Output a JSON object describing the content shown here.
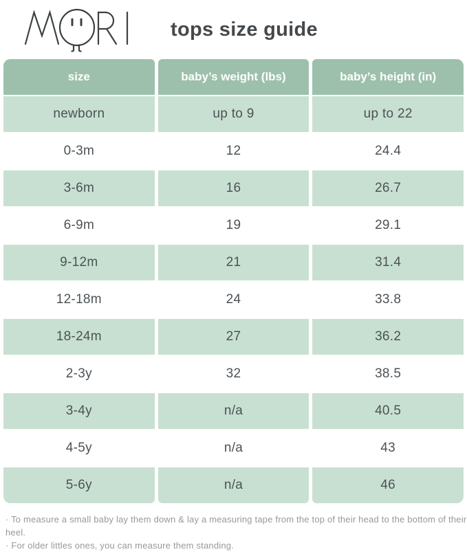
{
  "brand": {
    "name": "MORI"
  },
  "header": {
    "title": "tops size guide"
  },
  "table": {
    "columns": [
      "size",
      "baby’s weight (lbs)",
      "baby’s height (in)"
    ],
    "rows": [
      [
        "newborn",
        "up to 9",
        "up to 22"
      ],
      [
        "0-3m",
        "12",
        "24.4"
      ],
      [
        "3-6m",
        "16",
        "26.7"
      ],
      [
        "6-9m",
        "19",
        "29.1"
      ],
      [
        "9-12m",
        "21",
        "31.4"
      ],
      [
        "12-18m",
        "24",
        "33.8"
      ],
      [
        "18-24m",
        "27",
        "36.2"
      ],
      [
        "2-3y",
        "32",
        "38.5"
      ],
      [
        "3-4y",
        "n/a",
        "40.5"
      ],
      [
        "4-5y",
        "n/a",
        "43"
      ],
      [
        "5-6y",
        "n/a",
        "46"
      ]
    ]
  },
  "notes": [
    "· To measure a small baby lay them down & lay a measuring tape from the top of their head to the bottom of their heel.",
    "· For older littles ones, you can measure them standing."
  ],
  "colors": {
    "header_bg": "#9dc0ac",
    "row_green": "#c8e0d1",
    "row_white": "#ffffff",
    "header_text": "#fdfefd",
    "data_text": "#4c5256",
    "title_text": "#45494c",
    "note_text": "#95999c"
  }
}
